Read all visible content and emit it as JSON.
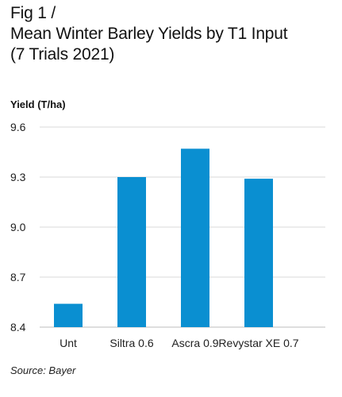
{
  "chart_data": {
    "type": "bar",
    "title_lines": [
      "Fig 1 /",
      "Mean Winter Barley Yields by T1 Input",
      "(7 Trials 2021)"
    ],
    "ylabel": "Yield (T/ha)",
    "xlabel": "",
    "categories": [
      "Unt",
      "Siltra 0.6",
      "Ascra 0.9",
      "Revystar XE 0.7"
    ],
    "values": [
      8.54,
      9.3,
      9.47,
      9.29
    ],
    "ylim": [
      8.4,
      9.6
    ],
    "yticks": [
      "8.4",
      "8.7",
      "9.0",
      "9.3",
      "9.6"
    ],
    "grid": true,
    "bar_color": "#0a8fd1",
    "grid_color": "#d9d9d9",
    "source": "Source: Bayer"
  }
}
